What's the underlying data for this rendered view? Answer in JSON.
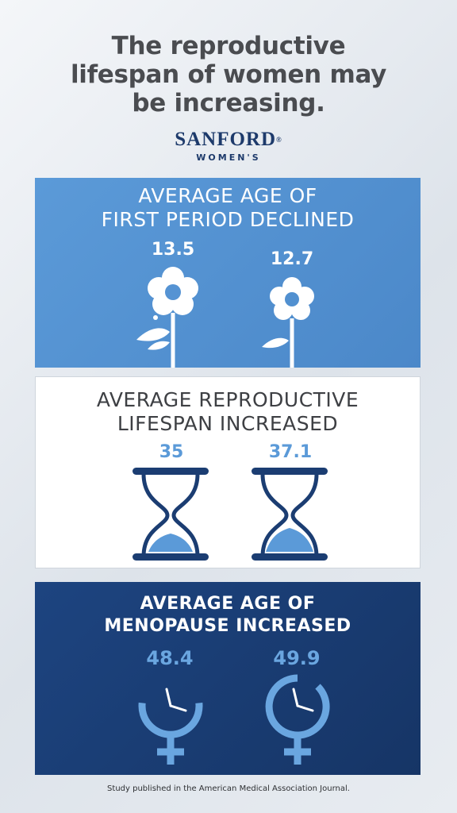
{
  "title": {
    "line1": "The reproductive",
    "line2": "lifespan of women may",
    "line3": "be increasing."
  },
  "logo": {
    "main": "SANFORD",
    "sub": "WOMEN'S",
    "trademark": "®"
  },
  "panels": [
    {
      "title_line1": "AVERAGE AGE OF",
      "title_line2": "FIRST PERIOD DECLINED",
      "values": [
        "13.5",
        "12.7"
      ],
      "icon": "flower-icon"
    },
    {
      "title_line1": "AVERAGE REPRODUCTIVE",
      "title_line2": "LIFESPAN INCREASED",
      "values": [
        "35",
        "37.1"
      ],
      "icon": "hourglass-icon"
    },
    {
      "title_line1": "AVERAGE AGE OF",
      "title_line2": "MENOPAUSE INCREASED",
      "values": [
        "48.4",
        "49.9"
      ],
      "icon": "female-clock-icon"
    }
  ],
  "footnote": "Study published in the American Medical Association Journal.",
  "colors": {
    "title_text": "#4a4c50",
    "brand_navy": "#1d3a6b",
    "panel1_blue": "#5b9ad8",
    "panel3_navy": "#1d4480",
    "accent_light_blue": "#6aa6e0"
  }
}
